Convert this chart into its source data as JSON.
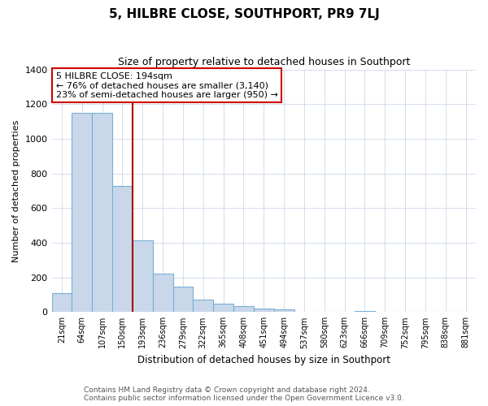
{
  "title": "5, HILBRE CLOSE, SOUTHPORT, PR9 7LJ",
  "subtitle": "Size of property relative to detached houses in Southport",
  "xlabel": "Distribution of detached houses by size in Southport",
  "ylabel": "Number of detached properties",
  "footnote1": "Contains HM Land Registry data © Crown copyright and database right 2024.",
  "footnote2": "Contains public sector information licensed under the Open Government Licence v3.0.",
  "bar_color": "#c8d8ea",
  "bar_edge_color": "#7aaed4",
  "red_line_color": "#aa0000",
  "annotation_box_edge_color": "#cc0000",
  "categories": [
    "21sqm",
    "64sqm",
    "107sqm",
    "150sqm",
    "193sqm",
    "236sqm",
    "279sqm",
    "322sqm",
    "365sqm",
    "408sqm",
    "451sqm",
    "494sqm",
    "537sqm",
    "580sqm",
    "623sqm",
    "666sqm",
    "709sqm",
    "752sqm",
    "795sqm",
    "838sqm",
    "881sqm"
  ],
  "values": [
    110,
    1150,
    1150,
    730,
    415,
    220,
    145,
    72,
    50,
    33,
    18,
    15,
    0,
    0,
    0,
    8,
    0,
    0,
    0,
    0,
    0
  ],
  "ylim": [
    0,
    1400
  ],
  "yticks": [
    0,
    200,
    400,
    600,
    800,
    1000,
    1200,
    1400
  ],
  "annotation_title": "5 HILBRE CLOSE: 194sqm",
  "annotation_line1": "← 76% of detached houses are smaller (3,140)",
  "annotation_line2": "23% of semi-detached houses are larger (950) →",
  "red_line_x": 4,
  "property_bar_index": 4
}
